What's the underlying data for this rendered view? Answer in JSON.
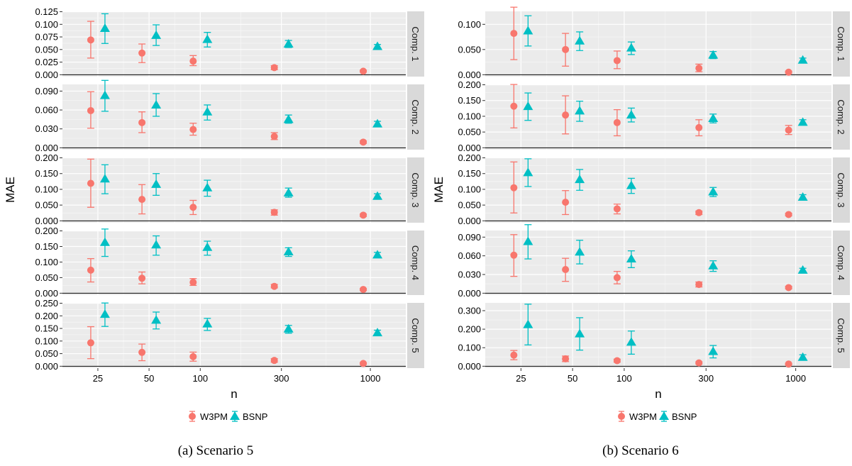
{
  "colors": {
    "W3PM": "#F8766D",
    "BSNP": "#00BFC4",
    "panel_bg": "#EBEBEB",
    "grid": "#FFFFFF",
    "strip_bg": "#D9D9D9"
  },
  "legend": {
    "items": [
      "W3PM",
      "BSNP"
    ]
  },
  "chart_data": [
    {
      "type": "scatter",
      "caption": "(a) Scenario 5",
      "xlabel": "n",
      "ylabel": "MAE",
      "x_scale": "log",
      "x_ticks": [
        25,
        50,
        100,
        300,
        1000
      ],
      "n_values": [
        25,
        50,
        100,
        300,
        1000
      ],
      "legend_position": "bottom",
      "series_names": [
        "W3PM",
        "BSNP"
      ],
      "facets": [
        {
          "label": "Comp. 1",
          "ylim": [
            0,
            0.125
          ],
          "yticks": [
            "0.000",
            "0.025",
            "0.050",
            "0.075",
            "0.100",
            "0.125"
          ],
          "W3PM": {
            "mean": [
              0.069,
              0.043,
              0.027,
              0.014,
              0.007
            ],
            "lower": [
              0.033,
              0.024,
              0.018,
              0.01,
              0.006
            ],
            "upper": [
              0.106,
              0.061,
              0.038,
              0.018,
              0.009
            ]
          },
          "BSNP": {
            "mean": [
              0.092,
              0.078,
              0.07,
              0.061,
              0.056
            ],
            "lower": [
              0.062,
              0.058,
              0.055,
              0.054,
              0.051
            ],
            "upper": [
              0.121,
              0.099,
              0.084,
              0.068,
              0.06
            ]
          }
        },
        {
          "label": "Comp. 2",
          "ylim": [
            0,
            0.1
          ],
          "yticks": [
            "0.000",
            "0.030",
            "0.060",
            "0.090"
          ],
          "W3PM": {
            "mean": [
              0.059,
              0.04,
              0.029,
              0.018,
              0.009
            ],
            "lower": [
              0.031,
              0.024,
              0.02,
              0.013,
              0.007
            ],
            "upper": [
              0.089,
              0.057,
              0.039,
              0.024,
              0.011
            ]
          },
          "BSNP": {
            "mean": [
              0.083,
              0.068,
              0.057,
              0.045,
              0.038
            ],
            "lower": [
              0.058,
              0.05,
              0.044,
              0.039,
              0.035
            ],
            "upper": [
              0.107,
              0.086,
              0.068,
              0.052,
              0.042
            ]
          }
        },
        {
          "label": "Comp. 3",
          "ylim": [
            0,
            0.2
          ],
          "yticks": [
            "0.000",
            "0.050",
            "0.100",
            "0.150",
            "0.200"
          ],
          "W3PM": {
            "mean": [
              0.119,
              0.068,
              0.043,
              0.027,
              0.018
            ],
            "lower": [
              0.043,
              0.022,
              0.02,
              0.018,
              0.014
            ],
            "upper": [
              0.196,
              0.115,
              0.065,
              0.035,
              0.022
            ]
          },
          "BSNP": {
            "mean": [
              0.133,
              0.116,
              0.105,
              0.089,
              0.078
            ],
            "lower": [
              0.086,
              0.081,
              0.078,
              0.075,
              0.07
            ],
            "upper": [
              0.178,
              0.15,
              0.129,
              0.104,
              0.086
            ]
          }
        },
        {
          "label": "Comp. 4",
          "ylim": [
            0,
            0.2
          ],
          "yticks": [
            "0.000",
            "0.050",
            "0.100",
            "0.150",
            "0.200"
          ],
          "W3PM": {
            "mean": [
              0.074,
              0.048,
              0.035,
              0.022,
              0.012
            ],
            "lower": [
              0.036,
              0.03,
              0.025,
              0.017,
              0.009
            ],
            "upper": [
              0.111,
              0.068,
              0.047,
              0.028,
              0.015
            ]
          },
          "BSNP": {
            "mean": [
              0.163,
              0.155,
              0.147,
              0.133,
              0.123
            ],
            "lower": [
              0.118,
              0.122,
              0.122,
              0.118,
              0.115
            ],
            "upper": [
              0.206,
              0.184,
              0.167,
              0.146,
              0.131
            ]
          }
        },
        {
          "label": "Comp. 5",
          "ylim": [
            0,
            0.25
          ],
          "yticks": [
            "0.000",
            "0.050",
            "0.100",
            "0.150",
            "0.200",
            "0.250"
          ],
          "W3PM": {
            "mean": [
              0.093,
              0.055,
              0.038,
              0.023,
              0.011
            ],
            "lower": [
              0.03,
              0.022,
              0.02,
              0.016,
              0.008
            ],
            "upper": [
              0.157,
              0.088,
              0.056,
              0.03,
              0.014
            ]
          },
          "BSNP": {
            "mean": [
              0.206,
              0.183,
              0.168,
              0.148,
              0.133
            ],
            "lower": [
              0.158,
              0.148,
              0.142,
              0.131,
              0.123
            ],
            "upper": [
              0.251,
              0.215,
              0.19,
              0.162,
              0.143
            ]
          }
        }
      ]
    },
    {
      "type": "scatter",
      "caption": "(b) Scenario 6",
      "xlabel": "n",
      "ylabel": "MAE",
      "x_scale": "log",
      "x_ticks": [
        25,
        50,
        100,
        300,
        1000
      ],
      "n_values": [
        25,
        50,
        100,
        300,
        1000
      ],
      "legend_position": "bottom",
      "series_names": [
        "W3PM",
        "BSNP"
      ],
      "facets": [
        {
          "label": "Comp. 1",
          "ylim": [
            0,
            0.125
          ],
          "yticks": [
            "0.000",
            "0.050",
            "0.100"
          ],
          "W3PM": {
            "mean": [
              0.082,
              0.05,
              0.028,
              0.013,
              0.005
            ],
            "lower": [
              0.03,
              0.017,
              0.012,
              0.006,
              0.003
            ],
            "upper": [
              0.134,
              0.082,
              0.047,
              0.021,
              0.007
            ]
          },
          "BSNP": {
            "mean": [
              0.087,
              0.067,
              0.053,
              0.039,
              0.029
            ],
            "lower": [
              0.057,
              0.048,
              0.04,
              0.032,
              0.025
            ],
            "upper": [
              0.117,
              0.085,
              0.065,
              0.046,
              0.033
            ]
          }
        },
        {
          "label": "Comp. 2",
          "ylim": [
            0,
            0.2
          ],
          "yticks": [
            "0.000",
            "0.050",
            "0.100",
            "0.150",
            "0.200"
          ],
          "W3PM": {
            "mean": [
              0.132,
              0.104,
              0.08,
              0.064,
              0.056
            ],
            "lower": [
              0.063,
              0.044,
              0.038,
              0.038,
              0.042
            ],
            "upper": [
              0.201,
              0.165,
              0.121,
              0.089,
              0.071
            ]
          },
          "BSNP": {
            "mean": [
              0.131,
              0.117,
              0.104,
              0.093,
              0.081
            ],
            "lower": [
              0.087,
              0.084,
              0.082,
              0.079,
              0.073
            ],
            "upper": [
              0.174,
              0.148,
              0.126,
              0.107,
              0.089
            ]
          }
        },
        {
          "label": "Comp. 3",
          "ylim": [
            0,
            0.2
          ],
          "yticks": [
            "0.000",
            "0.050",
            "0.100",
            "0.150",
            "0.200"
          ],
          "W3PM": {
            "mean": [
              0.105,
              0.059,
              0.038,
              0.026,
              0.02
            ],
            "lower": [
              0.025,
              0.02,
              0.022,
              0.02,
              0.016
            ],
            "upper": [
              0.187,
              0.096,
              0.053,
              0.031,
              0.024
            ]
          },
          "BSNP": {
            "mean": [
              0.153,
              0.131,
              0.112,
              0.092,
              0.075
            ],
            "lower": [
              0.109,
              0.097,
              0.087,
              0.077,
              0.066
            ],
            "upper": [
              0.197,
              0.163,
              0.135,
              0.106,
              0.083
            ]
          }
        },
        {
          "label": "Comp. 4",
          "ylim": [
            0,
            0.1
          ],
          "yticks": [
            "0.000",
            "0.030",
            "0.060",
            "0.090"
          ],
          "W3PM": {
            "mean": [
              0.061,
              0.038,
              0.025,
              0.014,
              0.009
            ],
            "lower": [
              0.027,
              0.019,
              0.015,
              0.01,
              0.007
            ],
            "upper": [
              0.094,
              0.056,
              0.035,
              0.018,
              0.011
            ]
          },
          "BSNP": {
            "mean": [
              0.083,
              0.066,
              0.055,
              0.044,
              0.037
            ],
            "lower": [
              0.055,
              0.047,
              0.041,
              0.035,
              0.033
            ],
            "upper": [
              0.11,
              0.085,
              0.068,
              0.052,
              0.04
            ]
          }
        },
        {
          "label": "Comp. 5",
          "ylim": [
            0,
            0.34
          ],
          "yticks": [
            "0.000",
            "0.100",
            "0.200",
            "0.300"
          ],
          "W3PM": {
            "mean": [
              0.06,
              0.04,
              0.03,
              0.018,
              0.012
            ],
            "lower": [
              0.035,
              0.025,
              0.022,
              0.012,
              0.008
            ],
            "upper": [
              0.085,
              0.055,
              0.038,
              0.024,
              0.016
            ]
          },
          "BSNP": {
            "mean": [
              0.225,
              0.175,
              0.13,
              0.08,
              0.048
            ],
            "lower": [
              0.115,
              0.087,
              0.065,
              0.045,
              0.035
            ],
            "upper": [
              0.335,
              0.262,
              0.19,
              0.112,
              0.062
            ]
          }
        }
      ]
    }
  ]
}
